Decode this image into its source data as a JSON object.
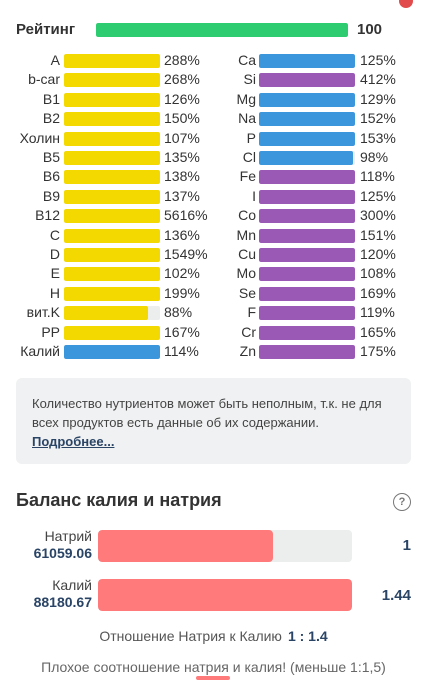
{
  "rating": {
    "label": "Рейтинг",
    "value": "100",
    "fill_fraction": 1.0,
    "color": "#2ecc71"
  },
  "colors": {
    "vitamin": "#f3d900",
    "mineral_blue": "#3b96dc",
    "mineral_purple": "#9b59b6",
    "bar_track": "#eceded",
    "balance_fill": "#ff7b7b"
  },
  "left_nutrients": [
    {
      "name": "A",
      "value": "288%",
      "color": "#f3d900",
      "fill": 1.0
    },
    {
      "name": "b-car",
      "value": "268%",
      "color": "#f3d900",
      "fill": 1.0
    },
    {
      "name": "B1",
      "value": "126%",
      "color": "#f3d900",
      "fill": 1.0
    },
    {
      "name": "B2",
      "value": "150%",
      "color": "#f3d900",
      "fill": 1.0
    },
    {
      "name": "Холин",
      "value": "107%",
      "color": "#f3d900",
      "fill": 1.0
    },
    {
      "name": "B5",
      "value": "135%",
      "color": "#f3d900",
      "fill": 1.0
    },
    {
      "name": "B6",
      "value": "138%",
      "color": "#f3d900",
      "fill": 1.0
    },
    {
      "name": "B9",
      "value": "137%",
      "color": "#f3d900",
      "fill": 1.0
    },
    {
      "name": "B12",
      "value": "5616%",
      "color": "#f3d900",
      "fill": 1.0
    },
    {
      "name": "C",
      "value": "136%",
      "color": "#f3d900",
      "fill": 1.0
    },
    {
      "name": "D",
      "value": "1549%",
      "color": "#f3d900",
      "fill": 1.0
    },
    {
      "name": "E",
      "value": "102%",
      "color": "#f3d900",
      "fill": 1.0
    },
    {
      "name": "H",
      "value": "199%",
      "color": "#f3d900",
      "fill": 1.0
    },
    {
      "name": "вит.K",
      "value": "88%",
      "color": "#f3d900",
      "fill": 0.88
    },
    {
      "name": "PP",
      "value": "167%",
      "color": "#f3d900",
      "fill": 1.0
    },
    {
      "name": "Калий",
      "value": "114%",
      "color": "#3b96dc",
      "fill": 1.0
    }
  ],
  "right_nutrients": [
    {
      "name": "Ca",
      "value": "125%",
      "color": "#3b96dc",
      "fill": 1.0
    },
    {
      "name": "Si",
      "value": "412%",
      "color": "#9b59b6",
      "fill": 1.0
    },
    {
      "name": "Mg",
      "value": "129%",
      "color": "#3b96dc",
      "fill": 1.0
    },
    {
      "name": "Na",
      "value": "152%",
      "color": "#3b96dc",
      "fill": 1.0
    },
    {
      "name": "P",
      "value": "153%",
      "color": "#3b96dc",
      "fill": 1.0
    },
    {
      "name": "Cl",
      "value": "98%",
      "color": "#3b96dc",
      "fill": 0.98
    },
    {
      "name": "Fe",
      "value": "118%",
      "color": "#9b59b6",
      "fill": 1.0
    },
    {
      "name": "I",
      "value": "125%",
      "color": "#9b59b6",
      "fill": 1.0
    },
    {
      "name": "Co",
      "value": "300%",
      "color": "#9b59b6",
      "fill": 1.0
    },
    {
      "name": "Mn",
      "value": "151%",
      "color": "#9b59b6",
      "fill": 1.0
    },
    {
      "name": "Cu",
      "value": "120%",
      "color": "#9b59b6",
      "fill": 1.0
    },
    {
      "name": "Mo",
      "value": "108%",
      "color": "#9b59b6",
      "fill": 1.0
    },
    {
      "name": "Se",
      "value": "169%",
      "color": "#9b59b6",
      "fill": 1.0
    },
    {
      "name": "F",
      "value": "119%",
      "color": "#9b59b6",
      "fill": 1.0
    },
    {
      "name": "Cr",
      "value": "165%",
      "color": "#9b59b6",
      "fill": 1.0
    },
    {
      "name": "Zn",
      "value": "175%",
      "color": "#9b59b6",
      "fill": 1.0
    }
  ],
  "note": {
    "text": "Количество нутриентов может быть неполным, т.к. не для всех продуктов есть данные об их содержании.",
    "link": "Подробнее..."
  },
  "balance": {
    "title": "Баланс калия и натрия",
    "help_icon": "question-circle-icon",
    "sodium": {
      "label": "Натрий",
      "amount": "61059.06",
      "ratio": "1",
      "fill_fraction": 0.69
    },
    "potassium": {
      "label": "Калий",
      "amount": "88180.67",
      "ratio": "1.44",
      "fill_fraction": 1.0
    },
    "ratio_label": "Отношение Натрия к Калию",
    "ratio_value": "1 : 1.4",
    "warning": "Плохое соотношение натрия и калия! (меньше 1:1,5)"
  }
}
